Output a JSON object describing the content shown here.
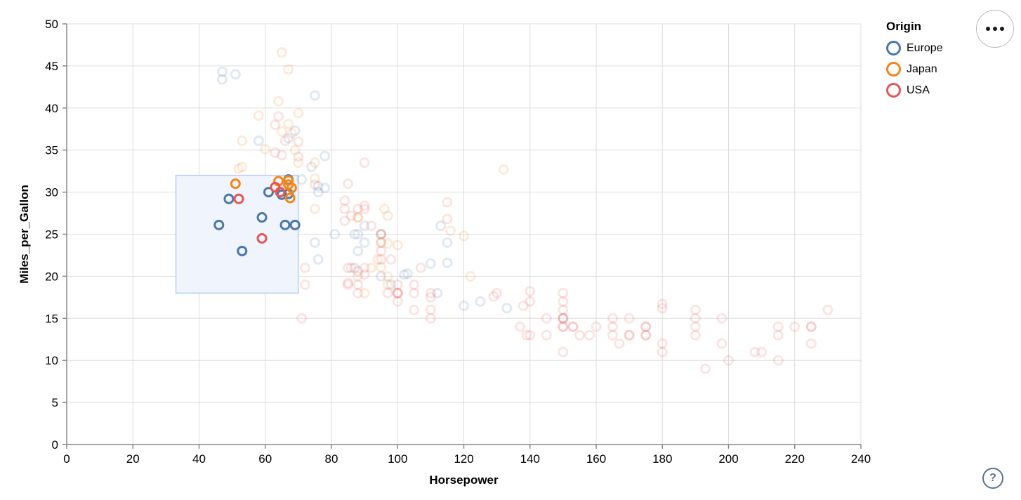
{
  "page": {
    "background": "#ffffff"
  },
  "legend": {
    "title": "Origin",
    "items": [
      {
        "label": "Europe",
        "color": "#4c78a8"
      },
      {
        "label": "Japan",
        "color": "#f58518"
      },
      {
        "label": "USA",
        "color": "#e45756"
      }
    ]
  },
  "actions_menu": {
    "icon": "ellipsis"
  },
  "help": {
    "icon": "?"
  },
  "chart_data": {
    "type": "scatter",
    "title": "",
    "xlabel": "Horsepower",
    "ylabel": "Miles_per_Gallon",
    "xlim": [
      0,
      240
    ],
    "ylim": [
      0,
      50
    ],
    "x_ticks": [
      0,
      20,
      40,
      60,
      80,
      100,
      120,
      140,
      160,
      180,
      200,
      220,
      240
    ],
    "y_ticks": [
      0,
      5,
      10,
      15,
      20,
      25,
      30,
      35,
      40,
      45,
      50
    ],
    "grid": true,
    "legend_position": "top-right",
    "axis_colors": {
      "grid": "#dddddd",
      "domain": "#888888",
      "tick": "#888888",
      "label": "#000000"
    },
    "brush": {
      "x": [
        33,
        70
      ],
      "y": [
        18,
        32
      ],
      "fill": "#f0f5fd",
      "stroke": "#b7cdf2"
    },
    "point_style": {
      "radius": 6,
      "stroke_width": 3,
      "faded_opacity": 0.16
    },
    "origin_colors": {
      "Europe": "#4c78a8",
      "Japan": "#f58518",
      "USA": "#e45756"
    },
    "series_note": "points = [Horsepower, Miles_per_Gallon, Origin]; points inside brush render fully opaque",
    "points": [
      [
        46,
        26.1,
        "Europe"
      ],
      [
        49,
        29.2,
        "Europe"
      ],
      [
        53,
        23,
        "Europe"
      ],
      [
        59,
        27,
        "Europe"
      ],
      [
        61,
        30,
        "Europe"
      ],
      [
        65,
        29.7,
        "Europe"
      ],
      [
        67,
        29.8,
        "Europe"
      ],
      [
        66,
        26.1,
        "Europe"
      ],
      [
        69,
        26.1,
        "Europe"
      ],
      [
        67,
        31.5,
        "Europe"
      ],
      [
        51,
        31,
        "Japan"
      ],
      [
        64,
        31.3,
        "Japan"
      ],
      [
        67,
        31.4,
        "Japan"
      ],
      [
        67,
        30.9,
        "Japan"
      ],
      [
        68,
        30.5,
        "Japan"
      ],
      [
        67.5,
        29.3,
        "Japan"
      ],
      [
        52,
        29.2,
        "USA"
      ],
      [
        63,
        30.6,
        "USA"
      ],
      [
        64.5,
        30,
        "USA"
      ],
      [
        59,
        24.5,
        "USA"
      ],
      [
        47,
        44.3,
        "Europe"
      ],
      [
        51,
        44,
        "Europe"
      ],
      [
        47,
        43.4,
        "Europe"
      ],
      [
        75,
        41.5,
        "Europe"
      ],
      [
        69,
        37.3,
        "Europe"
      ],
      [
        67,
        36.4,
        "Europe"
      ],
      [
        58,
        36.1,
        "Europe"
      ],
      [
        78,
        34.3,
        "Europe"
      ],
      [
        74,
        33,
        "Europe"
      ],
      [
        71,
        31.5,
        "Europe"
      ],
      [
        76,
        30.7,
        "Europe"
      ],
      [
        78,
        30.5,
        "Europe"
      ],
      [
        76,
        30,
        "Europe"
      ],
      [
        81,
        25,
        "Europe"
      ],
      [
        88,
        25,
        "Europe"
      ],
      [
        87,
        25,
        "Europe"
      ],
      [
        90,
        24,
        "Europe"
      ],
      [
        95,
        25,
        "Europe"
      ],
      [
        113,
        26,
        "Europe"
      ],
      [
        112,
        18,
        "Europe"
      ],
      [
        76,
        22,
        "Europe"
      ],
      [
        87,
        21,
        "Europe"
      ],
      [
        90,
        26,
        "Europe"
      ],
      [
        75,
        24,
        "Europe"
      ],
      [
        95,
        20,
        "Europe"
      ],
      [
        98,
        19,
        "Europe"
      ],
      [
        115,
        24,
        "Europe"
      ],
      [
        102,
        20.2,
        "Europe"
      ],
      [
        125,
        17,
        "Europe"
      ],
      [
        120,
        16.5,
        "Europe"
      ],
      [
        133,
        16.2,
        "Europe"
      ],
      [
        110,
        21.5,
        "Europe"
      ],
      [
        115,
        21.6,
        "Europe"
      ],
      [
        103,
        20.3,
        "Europe"
      ],
      [
        88,
        23,
        "Europe"
      ],
      [
        65,
        46.6,
        "Japan"
      ],
      [
        67,
        44.6,
        "Japan"
      ],
      [
        64,
        40.8,
        "Japan"
      ],
      [
        70,
        39.4,
        "Japan"
      ],
      [
        58,
        39.1,
        "Japan"
      ],
      [
        65,
        37.2,
        "Japan"
      ],
      [
        68,
        37,
        "Japan"
      ],
      [
        60,
        35.1,
        "Japan"
      ],
      [
        52,
        32.8,
        "Japan"
      ],
      [
        53,
        33,
        "Japan"
      ],
      [
        53,
        36.1,
        "Japan"
      ],
      [
        70,
        33.5,
        "Japan"
      ],
      [
        67,
        38.1,
        "Japan"
      ],
      [
        69,
        35,
        "Japan"
      ],
      [
        75,
        33.5,
        "Japan"
      ],
      [
        75,
        31.6,
        "Japan"
      ],
      [
        75,
        28,
        "Japan"
      ],
      [
        88,
        27,
        "Japan"
      ],
      [
        88,
        27,
        "Japan"
      ],
      [
        95,
        24,
        "Japan"
      ],
      [
        95,
        25,
        "Japan"
      ],
      [
        97,
        19,
        "Japan"
      ],
      [
        88,
        20,
        "Japan"
      ],
      [
        94,
        22,
        "Japan"
      ],
      [
        90,
        18,
        "Japan"
      ],
      [
        97,
        20,
        "Japan"
      ],
      [
        92,
        21,
        "Japan"
      ],
      [
        97,
        27.2,
        "Japan"
      ],
      [
        95,
        21.1,
        "Japan"
      ],
      [
        97,
        23.9,
        "Japan"
      ],
      [
        100,
        23.7,
        "Japan"
      ],
      [
        120,
        24.8,
        "Japan"
      ],
      [
        116,
        25.4,
        "Japan"
      ],
      [
        122,
        20,
        "Japan"
      ],
      [
        132,
        32.7,
        "Japan"
      ],
      [
        96,
        28,
        "Japan"
      ],
      [
        130,
        18,
        "USA"
      ],
      [
        165,
        15,
        "USA"
      ],
      [
        150,
        18,
        "USA"
      ],
      [
        150,
        16,
        "USA"
      ],
      [
        140,
        17,
        "USA"
      ],
      [
        198,
        15,
        "USA"
      ],
      [
        220,
        14,
        "USA"
      ],
      [
        215,
        14,
        "USA"
      ],
      [
        225,
        14,
        "USA"
      ],
      [
        190,
        15,
        "USA"
      ],
      [
        170,
        15,
        "USA"
      ],
      [
        160,
        14,
        "USA"
      ],
      [
        150,
        15,
        "USA"
      ],
      [
        225,
        14,
        "USA"
      ],
      [
        215,
        10,
        "USA"
      ],
      [
        200,
        10,
        "USA"
      ],
      [
        210,
        11,
        "USA"
      ],
      [
        193,
        9,
        "USA"
      ],
      [
        165,
        14,
        "USA"
      ],
      [
        175,
        14,
        "USA"
      ],
      [
        153,
        14,
        "USA"
      ],
      [
        150,
        14,
        "USA"
      ],
      [
        180,
        12,
        "USA"
      ],
      [
        170,
        13,
        "USA"
      ],
      [
        175,
        13,
        "USA"
      ],
      [
        190,
        14,
        "USA"
      ],
      [
        190,
        13,
        "USA"
      ],
      [
        145,
        13,
        "USA"
      ],
      [
        137,
        14,
        "USA"
      ],
      [
        150,
        15,
        "USA"
      ],
      [
        165,
        13,
        "USA"
      ],
      [
        175,
        14,
        "USA"
      ],
      [
        153,
        14,
        "USA"
      ],
      [
        150,
        17,
        "USA"
      ],
      [
        208,
        11,
        "USA"
      ],
      [
        155,
        13,
        "USA"
      ],
      [
        158,
        13,
        "USA"
      ],
      [
        150,
        14,
        "USA"
      ],
      [
        215,
        13,
        "USA"
      ],
      [
        225,
        12,
        "USA"
      ],
      [
        175,
        13,
        "USA"
      ],
      [
        150,
        11,
        "USA"
      ],
      [
        167,
        12,
        "USA"
      ],
      [
        170,
        13,
        "USA"
      ],
      [
        180,
        11,
        "USA"
      ],
      [
        145,
        15,
        "USA"
      ],
      [
        230,
        16,
        "USA"
      ],
      [
        150,
        15,
        "USA"
      ],
      [
        139,
        13,
        "USA"
      ],
      [
        140,
        13,
        "USA"
      ],
      [
        180,
        16.7,
        "USA"
      ],
      [
        180,
        16.2,
        "USA"
      ],
      [
        190,
        16,
        "USA"
      ],
      [
        198,
        12,
        "USA"
      ],
      [
        95,
        24,
        "USA"
      ],
      [
        95,
        22,
        "USA"
      ],
      [
        97,
        18,
        "USA"
      ],
      [
        85,
        21,
        "USA"
      ],
      [
        90,
        21,
        "USA"
      ],
      [
        90,
        28,
        "USA"
      ],
      [
        95,
        25,
        "USA"
      ],
      [
        100,
        19,
        "USA"
      ],
      [
        105,
        16,
        "USA"
      ],
      [
        100,
        17,
        "USA"
      ],
      [
        88,
        19,
        "USA"
      ],
      [
        100,
        18,
        "USA"
      ],
      [
        86,
        21,
        "USA"
      ],
      [
        105,
        18,
        "USA"
      ],
      [
        100,
        18,
        "USA"
      ],
      [
        88,
        18,
        "USA"
      ],
      [
        95,
        23,
        "USA"
      ],
      [
        100,
        18,
        "USA"
      ],
      [
        72,
        21,
        "USA"
      ],
      [
        85,
        19,
        "USA"
      ],
      [
        107,
        21,
        "USA"
      ],
      [
        72,
        19,
        "USA"
      ],
      [
        110,
        18,
        "USA"
      ],
      [
        105,
        19,
        "USA"
      ],
      [
        110,
        17.5,
        "USA"
      ],
      [
        129,
        17.6,
        "USA"
      ],
      [
        138,
        16.5,
        "USA"
      ],
      [
        140,
        18.2,
        "USA"
      ],
      [
        98,
        22,
        "USA"
      ],
      [
        90,
        20.2,
        "USA"
      ],
      [
        88,
        20.6,
        "USA"
      ],
      [
        85,
        19.2,
        "USA"
      ],
      [
        84,
        28,
        "USA"
      ],
      [
        110,
        16,
        "USA"
      ],
      [
        110,
        15,
        "USA"
      ],
      [
        71,
        15,
        "USA"
      ],
      [
        65,
        34.4,
        "USA"
      ],
      [
        63,
        34.7,
        "USA"
      ],
      [
        66,
        36.1,
        "USA"
      ],
      [
        63,
        38,
        "USA"
      ],
      [
        70,
        34.2,
        "USA"
      ],
      [
        75,
        30.9,
        "USA"
      ],
      [
        70,
        36,
        "USA"
      ],
      [
        64,
        39,
        "USA"
      ],
      [
        88,
        28,
        "USA"
      ],
      [
        85,
        31,
        "USA"
      ],
      [
        84,
        29,
        "USA"
      ],
      [
        90,
        33.5,
        "USA"
      ],
      [
        115,
        28.8,
        "USA"
      ],
      [
        115,
        26.8,
        "USA"
      ],
      [
        90,
        28.4,
        "USA"
      ],
      [
        92,
        26,
        "USA"
      ],
      [
        84,
        26.6,
        "USA"
      ],
      [
        86,
        27.2,
        "USA"
      ]
    ]
  }
}
